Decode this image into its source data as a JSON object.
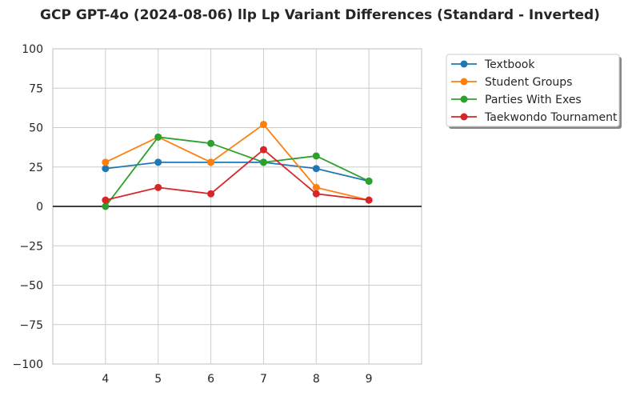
{
  "chart_data": {
    "type": "line",
    "title": "GCP GPT-4o (2024-08-06) llp Lp Variant Differences (Standard - Inverted)",
    "xlabel": "",
    "ylabel": "",
    "x": [
      4,
      5,
      6,
      7,
      8,
      9
    ],
    "xlim": [
      3,
      10
    ],
    "ylim": [
      -100,
      100
    ],
    "yticks": [
      -100,
      -75,
      -50,
      -25,
      0,
      25,
      50,
      75,
      100
    ],
    "ytick_labels": [
      "−100",
      "−75",
      "−50",
      "−25",
      "0",
      "25",
      "50",
      "75",
      "100"
    ],
    "xtick_labels": [
      "4",
      "5",
      "6",
      "7",
      "8",
      "9"
    ],
    "grid": true,
    "zero_line": true,
    "legend_position": "upper-right-outside",
    "series": [
      {
        "name": "Textbook",
        "color": "#1f77b4",
        "values": [
          24,
          28,
          28,
          28,
          24,
          16
        ]
      },
      {
        "name": "Student Groups",
        "color": "#ff7f0e",
        "values": [
          28,
          44,
          28,
          52,
          12,
          4
        ]
      },
      {
        "name": "Parties With Exes",
        "color": "#2ca02c",
        "values": [
          0,
          44,
          40,
          28,
          32,
          16
        ]
      },
      {
        "name": "Taekwondo Tournament",
        "color": "#d62728",
        "values": [
          4,
          12,
          8,
          36,
          8,
          4
        ]
      }
    ]
  }
}
